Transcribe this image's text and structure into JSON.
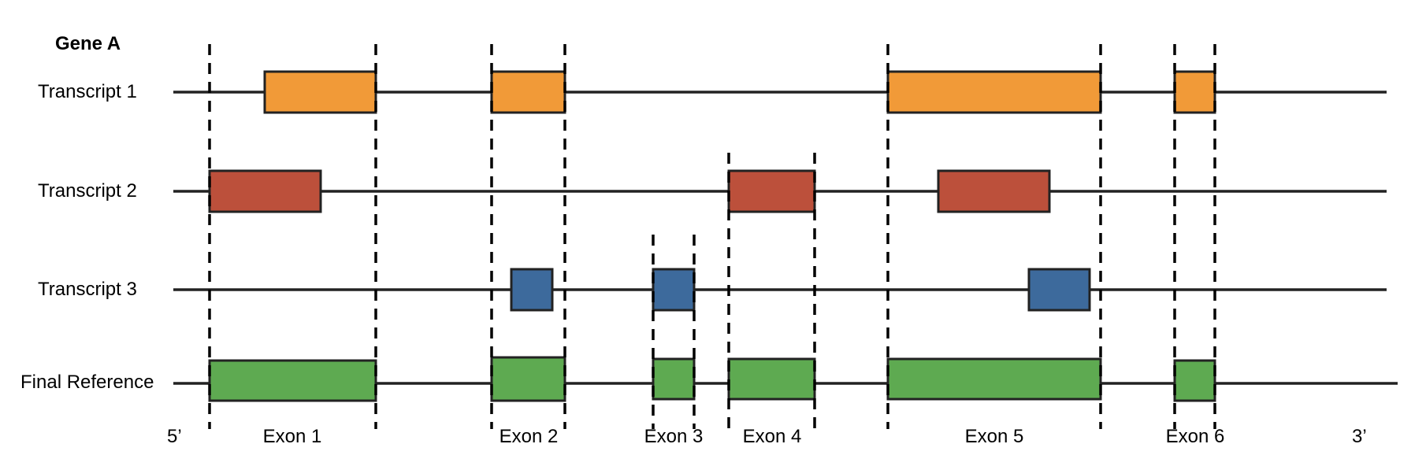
{
  "gene_label": "Gene A",
  "colors": {
    "transcript_1": "#F19A38",
    "transcript_2": "#BC503B",
    "transcript_3": "#3D6A9C",
    "final_reference": "#5EAA51"
  },
  "tracks": [
    {
      "id": "transcript-1",
      "label": "Transcript 1",
      "color_key": "transcript_1"
    },
    {
      "id": "transcript-2",
      "label": "Transcript 2",
      "color_key": "transcript_2"
    },
    {
      "id": "transcript-3",
      "label": "Transcript 3",
      "color_key": "transcript_3"
    },
    {
      "id": "final-reference",
      "label": "Final Reference",
      "color_key": "final_reference"
    }
  ],
  "exons": [
    {
      "label": "Exon 1"
    },
    {
      "label": "Exon 2"
    },
    {
      "label": "Exon 3"
    },
    {
      "label": "Exon 4"
    },
    {
      "label": "Exon 5"
    },
    {
      "label": "Exon 6"
    }
  ],
  "ends": {
    "five_prime": "5’",
    "three_prime": "3’"
  }
}
